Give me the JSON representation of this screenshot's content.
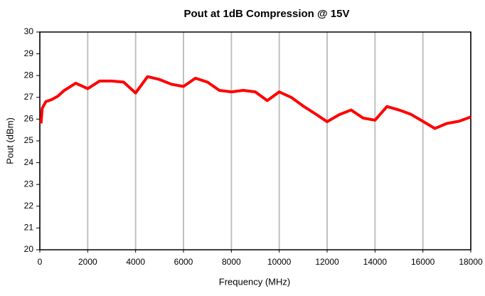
{
  "chart_data": {
    "type": "line",
    "title": "Pout at 1dB Compression @ 15V",
    "x_label": "Frequency (MHz)",
    "y_label": "Pout (dBm)",
    "x": [
      50,
      100,
      250,
      500,
      750,
      1000,
      1500,
      2000,
      2500,
      3000,
      3500,
      4000,
      4500,
      5000,
      5500,
      6000,
      6500,
      7000,
      7500,
      8000,
      8500,
      9000,
      9500,
      10000,
      10500,
      11000,
      11500,
      12000,
      12500,
      13000,
      13500,
      14000,
      14500,
      15000,
      15500,
      16000,
      16500,
      17000,
      17500,
      18000
    ],
    "series": [
      {
        "name": "Pout",
        "color": "#ff0000",
        "values": [
          25.8,
          26.5,
          26.8,
          26.9,
          27.05,
          27.3,
          27.65,
          27.4,
          27.75,
          27.75,
          27.7,
          27.2,
          27.95,
          27.82,
          27.6,
          27.5,
          27.88,
          27.7,
          27.32,
          27.25,
          27.32,
          27.25,
          26.85,
          27.25,
          27.0,
          26.6,
          26.25,
          25.88,
          26.2,
          26.42,
          26.05,
          25.95,
          26.58,
          26.42,
          26.22,
          25.9,
          25.57,
          25.8,
          25.9,
          26.1
        ]
      }
    ],
    "xlim": [
      0,
      18000
    ],
    "xticks": [
      0,
      2000,
      4000,
      6000,
      8000,
      10000,
      12000,
      14000,
      16000,
      18000
    ],
    "ylim": [
      20,
      30
    ],
    "yticks": [
      20,
      21,
      22,
      23,
      24,
      25,
      26,
      27,
      28,
      29,
      30
    ],
    "x_grid": true
  }
}
